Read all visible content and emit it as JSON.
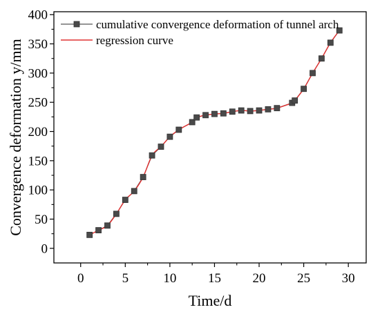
{
  "chart_data": {
    "type": "line",
    "xlabel": "Time/d",
    "ylabel": "Convergence deformation y/mm",
    "xlim": [
      -3,
      32
    ],
    "ylim": [
      -25,
      405
    ],
    "xticks": [
      0,
      5,
      10,
      15,
      20,
      25,
      30
    ],
    "yticks": [
      0,
      50,
      100,
      150,
      200,
      250,
      300,
      350,
      400
    ],
    "xtick_labels": [
      "0",
      "5",
      "10",
      "15",
      "20",
      "25",
      "30"
    ],
    "ytick_labels": [
      "0",
      "50",
      "100",
      "150",
      "200",
      "250",
      "300",
      "350",
      "400"
    ],
    "grid": false,
    "legend_position": "top-left",
    "series": [
      {
        "name": "cumulative convergence deformation of tunnel arch",
        "style": "line-with-square-markers",
        "color": "#555555",
        "x": [
          1,
          2,
          3,
          4,
          5,
          6,
          7,
          8,
          9,
          10,
          11,
          12.5,
          13,
          14,
          15,
          16,
          17,
          18,
          19,
          20,
          21,
          22,
          23.7,
          24,
          25,
          26,
          27,
          28,
          29
        ],
        "y": [
          23,
          31,
          39,
          59,
          83,
          98,
          122,
          159,
          174,
          191,
          203,
          216,
          224,
          228,
          230,
          231,
          234,
          236,
          235,
          236,
          238,
          240,
          249,
          253,
          273,
          300,
          325,
          352,
          373
        ]
      },
      {
        "name": "regression curve",
        "style": "line",
        "color": "#e03030",
        "x": [
          1,
          2,
          3,
          4,
          5,
          6,
          7,
          8,
          9,
          10,
          11,
          12.5,
          13,
          14,
          15,
          16,
          17,
          18,
          19,
          20,
          21,
          22,
          23.7,
          24,
          25,
          26,
          27,
          28,
          29
        ],
        "y": [
          23,
          31,
          39,
          59,
          83,
          98,
          122,
          159,
          174,
          191,
          203,
          216,
          224,
          228,
          230,
          231,
          234,
          236,
          235,
          236,
          238,
          240,
          249,
          253,
          273,
          300,
          325,
          352,
          373
        ]
      }
    ]
  }
}
